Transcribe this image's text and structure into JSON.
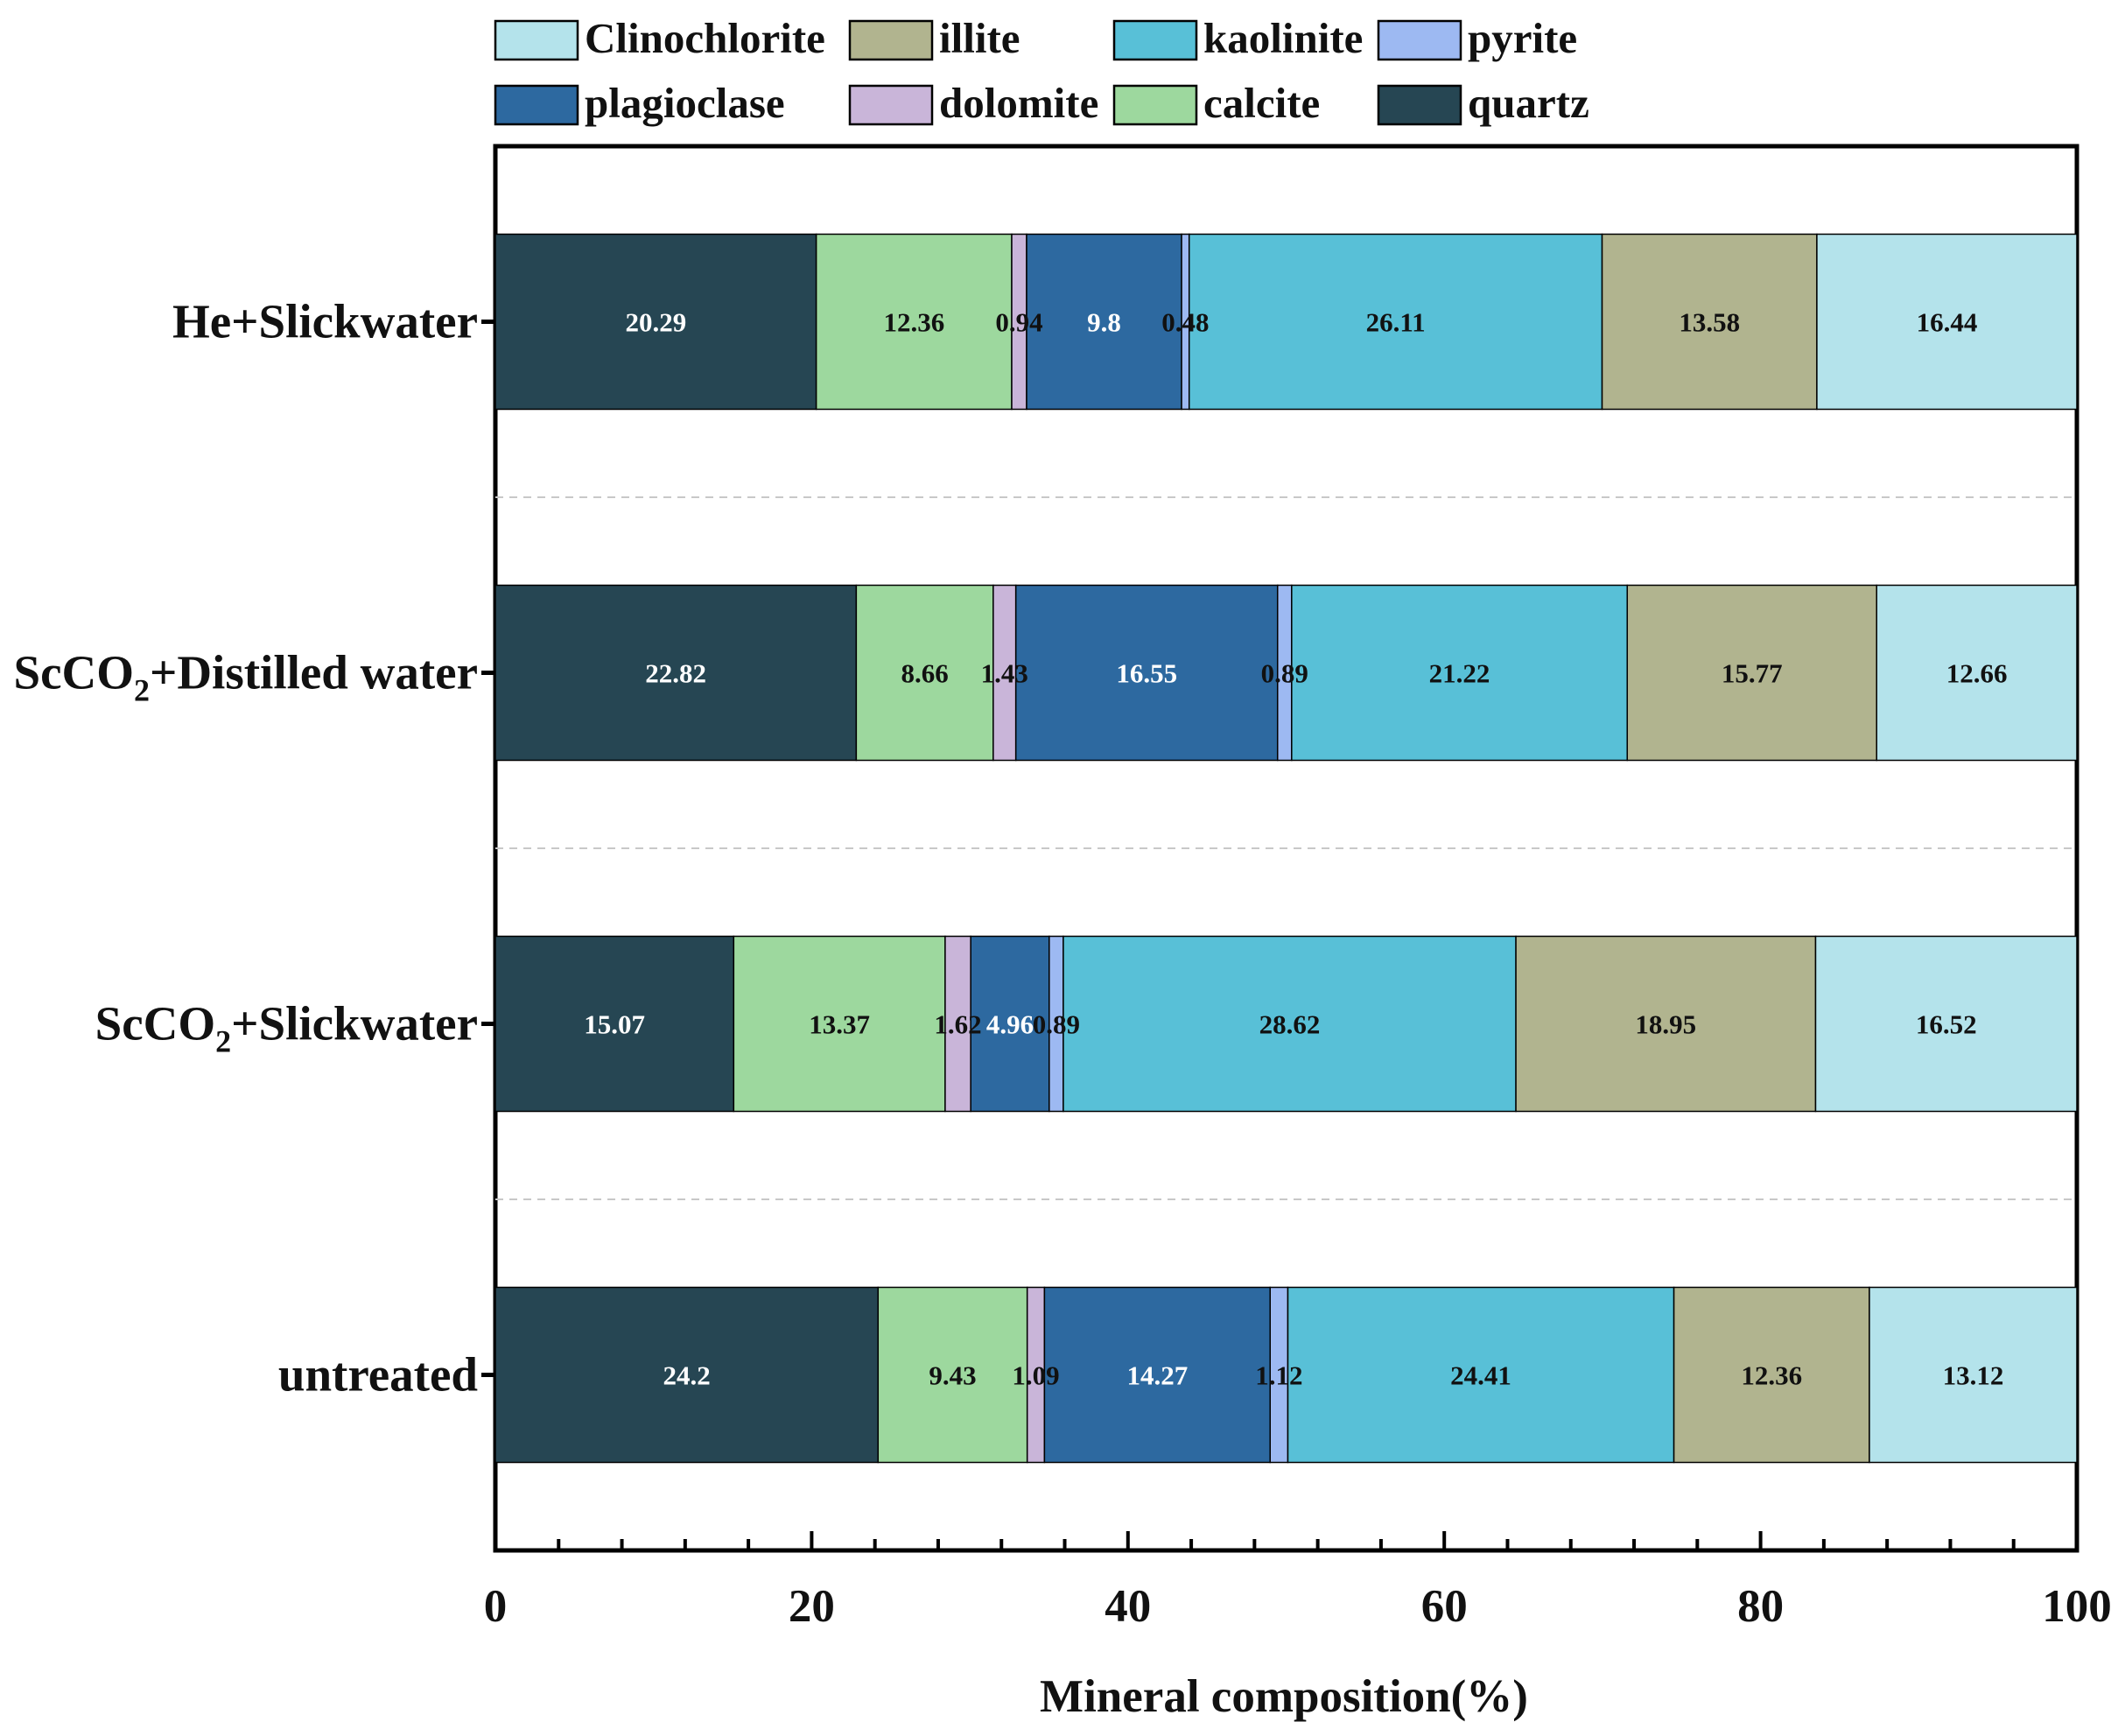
{
  "chart_data": {
    "type": "bar",
    "orientation": "horizontal",
    "stacked": true,
    "title": "",
    "xlabel": "Mineral composition(%)",
    "ylabel": "",
    "xlim": [
      0,
      100
    ],
    "x_ticks": [
      "0",
      "20",
      "40",
      "60",
      "80",
      "100"
    ],
    "categories": [
      {
        "label": "He+Slickwater"
      },
      {
        "label": "ScCO",
        "sub": "2",
        "rest": "+Distilled water"
      },
      {
        "label": "ScCO",
        "sub": "2",
        "rest": "+Slickwater"
      },
      {
        "label": "untreated"
      }
    ],
    "series": [
      {
        "name": "quartz",
        "color": "#264653",
        "label_color": "#ffffff",
        "values": [
          20.29,
          22.82,
          15.07,
          24.2
        ],
        "labels": [
          "20.29",
          "22.82",
          "15.07",
          "24.2"
        ]
      },
      {
        "name": "calcite",
        "color": "#9dd89e",
        "label_color": "#111111",
        "values": [
          12.36,
          8.66,
          13.37,
          9.43
        ],
        "labels": [
          "12.36",
          "8.66",
          "13.37",
          "9.43"
        ]
      },
      {
        "name": "dolomite",
        "color": "#c9b5d9",
        "label_color": "#111111",
        "values": [
          0.94,
          1.43,
          1.62,
          1.09
        ],
        "labels": [
          "0.94",
          "1.43",
          "1.62",
          "1.09"
        ]
      },
      {
        "name": "plagioclase",
        "color": "#2d69a0",
        "label_color": "#ffffff",
        "values": [
          9.8,
          16.55,
          4.96,
          14.27
        ],
        "labels": [
          "9.8",
          "16.55",
          "4.96",
          "14.27"
        ]
      },
      {
        "name": "pyrite",
        "color": "#9db9f2",
        "label_color": "#111111",
        "values": [
          0.48,
          0.89,
          0.89,
          1.12
        ],
        "labels": [
          "0.48",
          "0.89",
          "0.89",
          "1.12"
        ]
      },
      {
        "name": "kaolinite",
        "color": "#58c0d7",
        "label_color": "#111111",
        "values": [
          26.11,
          21.22,
          28.62,
          24.41
        ],
        "labels": [
          "26.11",
          "21.22",
          "28.62",
          "24.41"
        ]
      },
      {
        "name": "illite",
        "color": "#b1b48f",
        "label_color": "#111111",
        "values": [
          13.58,
          15.77,
          18.95,
          12.36
        ],
        "labels": [
          "13.58",
          "15.77",
          "18.95",
          "12.36"
        ]
      },
      {
        "name": "Clinochlorite",
        "color": "#b4e3eb",
        "label_color": "#111111",
        "values": [
          16.44,
          12.66,
          16.52,
          13.12
        ],
        "labels": [
          "16.44",
          "12.66",
          "16.52",
          "13.12"
        ]
      }
    ],
    "legend": {
      "position": "top",
      "order": [
        "Clinochlorite",
        "illite",
        "kaolinite",
        "pyrite",
        "plagioclase",
        "dolomite",
        "calcite",
        "quartz"
      ]
    }
  }
}
